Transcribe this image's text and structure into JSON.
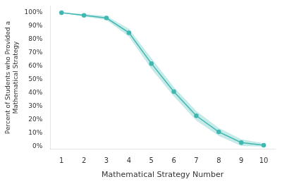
{
  "chart_data": {
    "type": "line",
    "x": [
      1,
      2,
      3,
      4,
      5,
      6,
      7,
      8,
      9,
      10
    ],
    "values": [
      1.0,
      0.98,
      0.96,
      0.85,
      0.62,
      0.41,
      0.23,
      0.11,
      0.03,
      0.01
    ],
    "upper": [
      1.0,
      0.99,
      0.975,
      0.88,
      0.66,
      0.445,
      0.265,
      0.14,
      0.055,
      0.025
    ],
    "lower": [
      1.0,
      0.97,
      0.945,
      0.82,
      0.58,
      0.375,
      0.195,
      0.08,
      0.005,
      0.0
    ],
    "color": "#40b8b2",
    "marker": "circle",
    "xlabel": "Mathematical Strategy Number",
    "ylabel": "Percent of Students who Provided a\nMathematical Strategy",
    "xlim": [
      0.5,
      10.5
    ],
    "ylim": [
      -0.02,
      1.05
    ],
    "xticks": [
      1,
      2,
      3,
      4,
      5,
      6,
      7,
      8,
      9,
      10
    ],
    "yticks": [
      {
        "value": 0.0,
        "label": "0%"
      },
      {
        "value": 0.1,
        "label": "10%"
      },
      {
        "value": 0.2,
        "label": "20%"
      },
      {
        "value": 0.3,
        "label": "30%"
      },
      {
        "value": 0.4,
        "label": "40%"
      },
      {
        "value": 0.5,
        "label": "50%"
      },
      {
        "value": 0.6,
        "label": "60%"
      },
      {
        "value": 0.7,
        "label": "70%"
      },
      {
        "value": 0.8,
        "label": "80%"
      },
      {
        "value": 0.9,
        "label": "90%"
      },
      {
        "value": 1.0,
        "label": "100%"
      }
    ],
    "grid": false
  }
}
